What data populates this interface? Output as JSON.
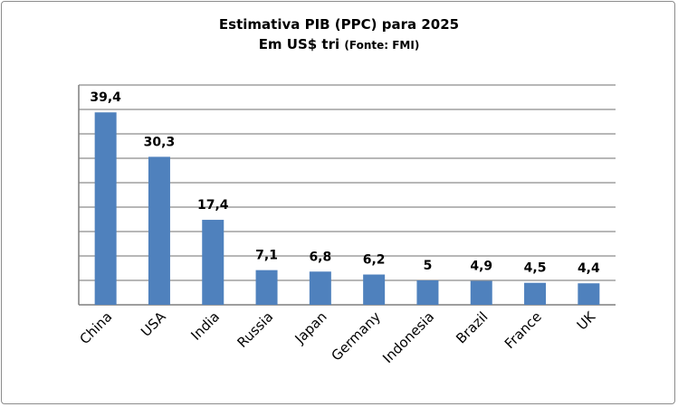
{
  "chart_data": {
    "type": "bar",
    "title": "Estimativa PIB (PPC) para 2025",
    "subtitle_main": "Em US$ tri",
    "subtitle_source": "(Fonte: FMI)",
    "categories": [
      "China",
      "USA",
      "India",
      "Russia",
      "Japan",
      "Germany",
      "Indonesia",
      "Brazil",
      "France",
      "UK"
    ],
    "values": [
      39.4,
      30.3,
      17.4,
      7.1,
      6.8,
      6.2,
      5,
      4.9,
      4.5,
      4.4
    ],
    "data_labels": [
      "39,4",
      "30,3",
      "17,4",
      "7,1",
      "6,8",
      "6,2",
      "5",
      "4,9",
      "4,5",
      "4,4"
    ],
    "xlabel": "",
    "ylabel": "",
    "ylim": [
      0,
      45
    ],
    "grid_step": 5,
    "grid": true,
    "bar_color": "#4f81bd",
    "legend": "none"
  }
}
